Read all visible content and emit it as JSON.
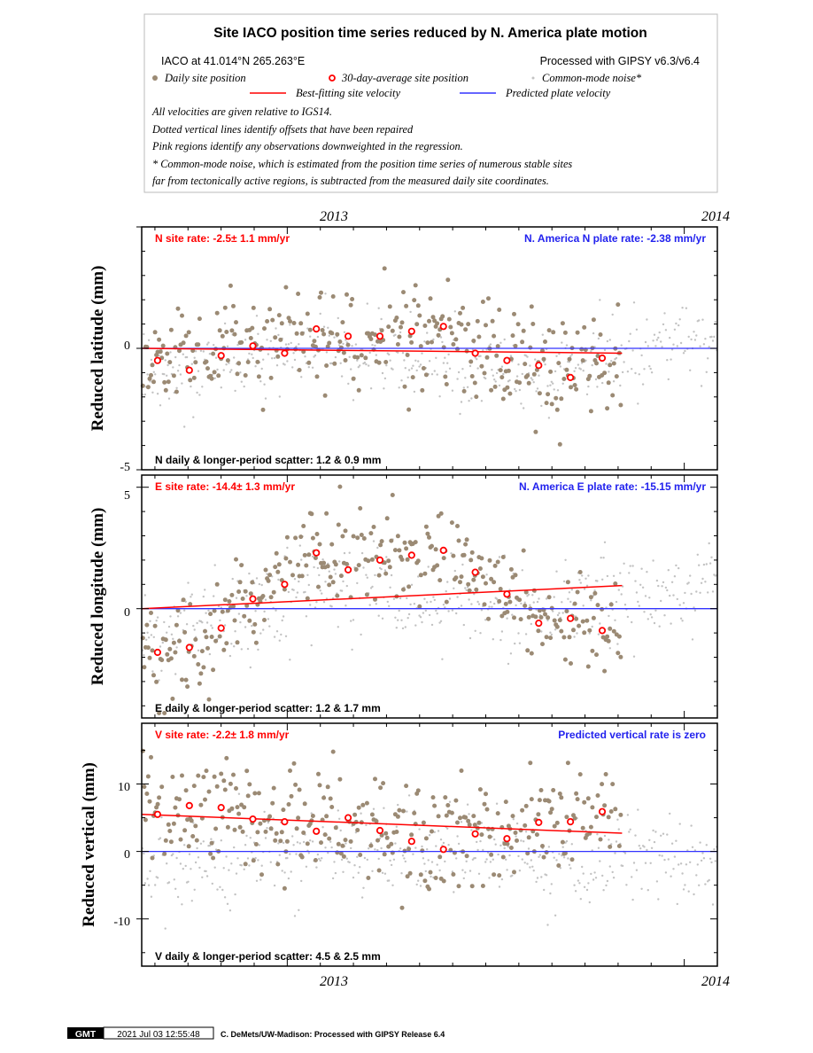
{
  "legend": {
    "title": "Site IACO position time series reduced by N. America plate motion",
    "site_location": "IACO at 41.014°N 265.263°E",
    "processed": "Processed with GIPSY v6.3/v6.4",
    "daily_label": "Daily site position",
    "avg_label": "30-day-average site position",
    "cm_label": "Common-mode noise*",
    "best_fit_label": "Best-fitting site velocity",
    "predicted_label": "Predicted plate velocity",
    "note1": "All velocities are given relative to IGS14.",
    "note2": "Dotted vertical lines identify offsets that have been repaired",
    "note3": "Pink regions identify any observations downweighted in the regression.",
    "note4": "* Common-mode noise, which is estimated from the position time series of numerous stable sites",
    "note5": "far from tectonically active regions, is subtracted from the measured daily site coordinates."
  },
  "colors": {
    "daily": "#9b8a74",
    "common_mode": "#c2c2c2",
    "average": "#ff0000",
    "best_fit": "#ff0000",
    "predicted": "#3333ff",
    "site_rate_text": "#ff0000",
    "plate_rate_text": "#2222ee"
  },
  "footer": {
    "logo": "GMT",
    "timestamp": "2021 Jul 03 12:55:48",
    "credit": "C. DeMets/UW-Madison: Processed with GIPSY Release 6.4"
  },
  "chart_data": [
    {
      "type": "scatter",
      "component": "N",
      "ylabel": "Reduced latitude (mm)",
      "xlim": [
        2012.55,
        2014.0
      ],
      "ylim": [
        -5,
        5
      ],
      "data_end": 2013.76,
      "x_tick_labels": [
        "2013",
        "2014"
      ],
      "y_tick_labels": [
        "-5",
        "0"
      ],
      "site_rate": "N site rate:  -2.5± 1.1 mm/yr",
      "plate_rate": "N. America N plate rate: -2.38 mm/yr",
      "scatter": "N daily & longer-period scatter:   1.2 &   0.9 mm",
      "best_fit": [
        [
          2012.55,
          0.0
        ],
        [
          2013.76,
          -0.2
        ]
      ],
      "predicted": [
        [
          2012.55,
          0.0
        ],
        [
          2014.0,
          0.0
        ]
      ],
      "averages": [
        [
          2012.59,
          -0.5
        ],
        [
          2012.67,
          -0.9
        ],
        [
          2012.75,
          -0.3
        ],
        [
          2012.83,
          0.1
        ],
        [
          2012.91,
          -0.2
        ],
        [
          2012.99,
          0.8
        ],
        [
          2013.07,
          0.5
        ],
        [
          2013.15,
          0.5
        ],
        [
          2013.23,
          0.7
        ],
        [
          2013.31,
          0.9
        ],
        [
          2013.39,
          -0.2
        ],
        [
          2013.47,
          -0.5
        ],
        [
          2013.55,
          -0.7
        ],
        [
          2013.63,
          -1.2
        ],
        [
          2013.71,
          -0.4
        ]
      ],
      "daily_trend": [
        [
          2012.55,
          -0.5
        ],
        [
          2012.8,
          0.0
        ],
        [
          2012.95,
          0.5
        ],
        [
          2013.3,
          0.6
        ],
        [
          2013.45,
          -0.3
        ],
        [
          2013.6,
          -1.0
        ],
        [
          2013.76,
          -0.5
        ]
      ],
      "daily_spread": 1.1,
      "daily_seed": 11,
      "cm_trend": [
        [
          2012.55,
          -1.0
        ],
        [
          2013.0,
          0.0
        ],
        [
          2013.5,
          -1.0
        ],
        [
          2014.0,
          0.3
        ]
      ],
      "cm_spread": 0.8,
      "cm_seed": 12
    },
    {
      "type": "scatter",
      "component": "E",
      "ylabel": "Reduced longitude (mm)",
      "xlim": [
        2012.55,
        2014.0
      ],
      "ylim": [
        -4.5,
        5.5
      ],
      "data_end": 2013.76,
      "x_tick_labels": [
        "2013",
        "2014"
      ],
      "y_tick_labels": [
        "0",
        "5"
      ],
      "site_rate": "E site rate: -14.4± 1.3 mm/yr",
      "plate_rate": "N. America E plate rate: -15.15 mm/yr",
      "scatter": "E daily & longer-period scatter:   1.2 &   1.7 mm",
      "best_fit": [
        [
          2012.55,
          0.0
        ],
        [
          2013.76,
          0.95
        ]
      ],
      "predicted": [
        [
          2012.55,
          0.0
        ],
        [
          2014.0,
          0.0
        ]
      ],
      "averages": [
        [
          2012.59,
          -1.8
        ],
        [
          2012.67,
          -1.6
        ],
        [
          2012.75,
          -0.8
        ],
        [
          2012.83,
          0.4
        ],
        [
          2012.91,
          1.0
        ],
        [
          2012.99,
          2.3
        ],
        [
          2013.07,
          1.6
        ],
        [
          2013.15,
          2.0
        ],
        [
          2013.23,
          2.2
        ],
        [
          2013.31,
          2.4
        ],
        [
          2013.39,
          1.5
        ],
        [
          2013.47,
          0.6
        ],
        [
          2013.55,
          -0.6
        ],
        [
          2013.63,
          -0.4
        ],
        [
          2013.71,
          -0.9
        ]
      ],
      "daily_trend": [
        [
          2012.55,
          -1.8
        ],
        [
          2012.7,
          -1.5
        ],
        [
          2012.85,
          0.8
        ],
        [
          2013.0,
          2.4
        ],
        [
          2013.3,
          2.5
        ],
        [
          2013.45,
          1.0
        ],
        [
          2013.55,
          -0.6
        ],
        [
          2013.76,
          -0.6
        ]
      ],
      "daily_spread": 1.0,
      "daily_seed": 21,
      "cm_trend": [
        [
          2012.55,
          -1.5
        ],
        [
          2013.0,
          1.0
        ],
        [
          2013.5,
          0.0
        ],
        [
          2014.0,
          1.0
        ]
      ],
      "cm_spread": 0.9,
      "cm_seed": 22
    },
    {
      "type": "scatter",
      "component": "V",
      "ylabel": "Reduced vertical (mm)",
      "xlim": [
        2012.55,
        2014.0
      ],
      "ylim": [
        -17,
        19
      ],
      "data_end": 2013.76,
      "x_tick_labels": [
        "2013",
        "2014"
      ],
      "y_tick_labels": [
        "-10",
        "0",
        "10"
      ],
      "site_rate": "V site rate:  -2.2± 1.8 mm/yr",
      "plate_rate": "Predicted vertical rate is zero",
      "scatter": "V daily & longer-period scatter:   4.5 &   2.5 mm",
      "best_fit": [
        [
          2012.55,
          5.5
        ],
        [
          2013.76,
          2.7
        ]
      ],
      "predicted": [
        [
          2012.55,
          0.0
        ],
        [
          2014.0,
          0.0
        ]
      ],
      "averages": [
        [
          2012.59,
          5.5
        ],
        [
          2012.67,
          6.8
        ],
        [
          2012.75,
          6.5
        ],
        [
          2012.83,
          4.8
        ],
        [
          2012.91,
          4.4
        ],
        [
          2012.99,
          3.0
        ],
        [
          2013.07,
          5.0
        ],
        [
          2013.15,
          3.1
        ],
        [
          2013.23,
          1.5
        ],
        [
          2013.31,
          0.3
        ],
        [
          2013.39,
          2.6
        ],
        [
          2013.47,
          1.9
        ],
        [
          2013.55,
          4.3
        ],
        [
          2013.63,
          4.4
        ],
        [
          2013.71,
          5.9
        ]
      ],
      "daily_trend": [
        [
          2012.55,
          6.5
        ],
        [
          2012.8,
          5.0
        ],
        [
          2013.0,
          4.0
        ],
        [
          2013.3,
          2.0
        ],
        [
          2013.45,
          3.0
        ],
        [
          2013.6,
          5.0
        ],
        [
          2013.76,
          6.0
        ]
      ],
      "daily_spread": 4.0,
      "daily_seed": 31,
      "cm_trend": [
        [
          2012.55,
          -2.0
        ],
        [
          2013.0,
          0.0
        ],
        [
          2013.5,
          -1.0
        ],
        [
          2014.0,
          -2.0
        ]
      ],
      "cm_spread": 3.5,
      "cm_seed": 32
    }
  ]
}
